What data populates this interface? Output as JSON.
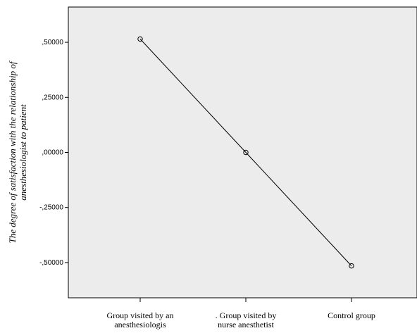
{
  "chart_data": {
    "type": "line",
    "categories": [
      "Group visited by an\nanesthesiologis",
      ". Group visited by\nnurse anesthetist",
      "Control group"
    ],
    "series": [
      {
        "values": [
          0.515,
          0.0,
          -0.515
        ]
      }
    ],
    "y_ticks": [
      ",50000",
      ",25000",
      ",00000",
      "-,25000",
      "-,50000"
    ],
    "y_tick_values": [
      0.5,
      0.25,
      0.0,
      -0.25,
      -0.5
    ],
    "ylabel": "The degree of satisfaction with the relationship of\nanesthesiologist to patient",
    "xlabel": "",
    "ylim": [
      -0.66,
      0.66
    ],
    "marker": "open-circle",
    "grid": false,
    "colors": {
      "plot_background": "#ececec",
      "line": "#000000",
      "axis": "#000000"
    }
  }
}
